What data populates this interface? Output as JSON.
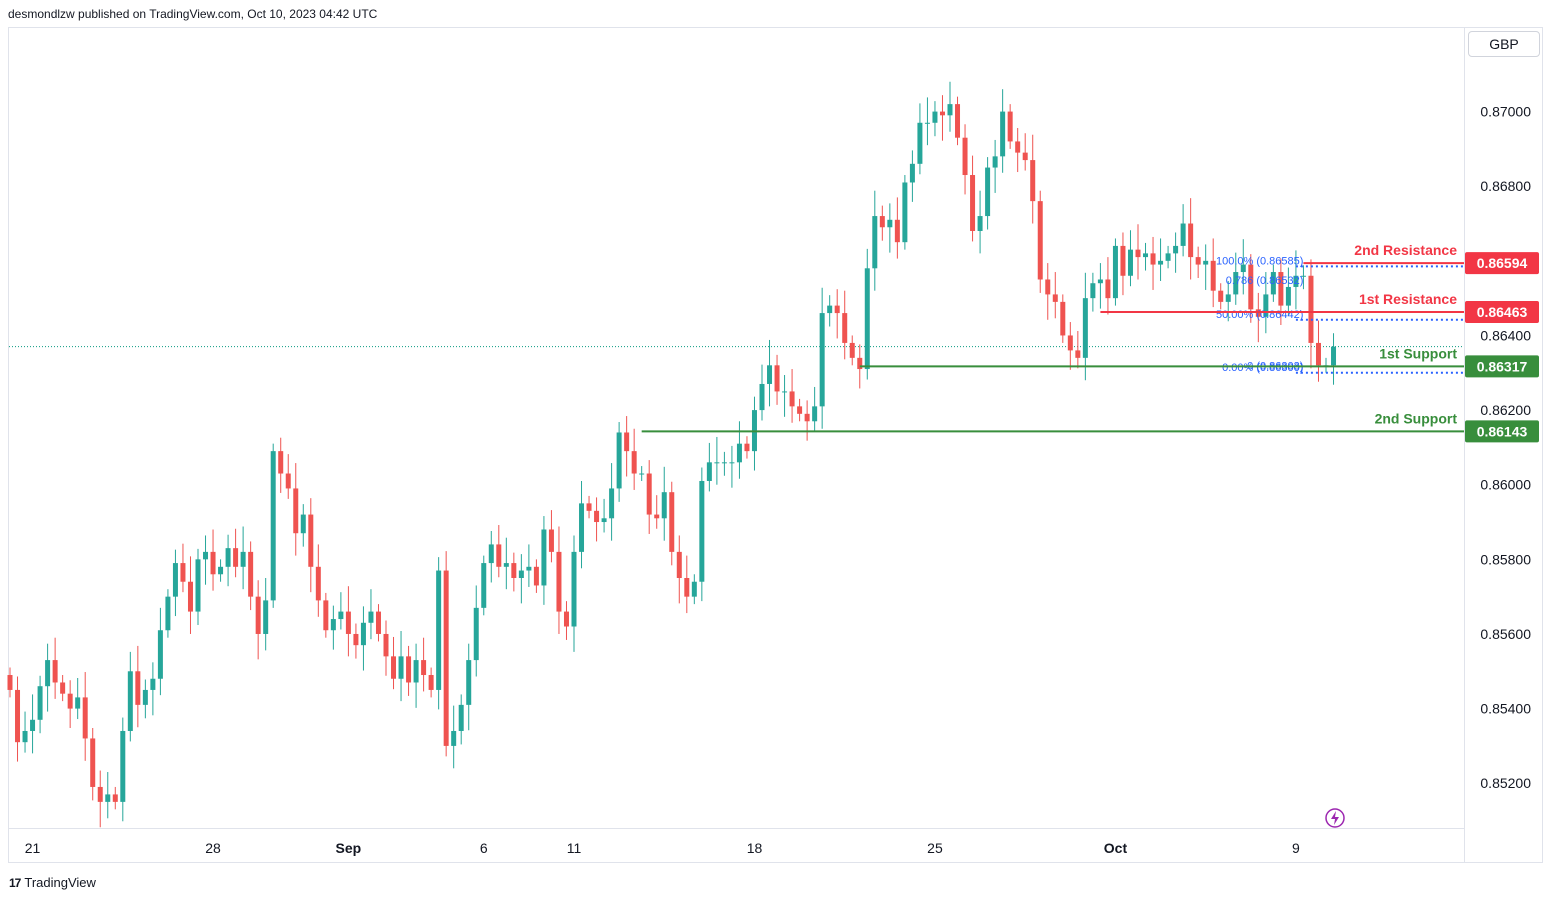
{
  "header": {
    "text": "desmondlzw published on TradingView.com, Oct 10, 2023 04:42 UTC"
  },
  "currency_button": "GBP",
  "footer": {
    "logo": "17",
    "brand": "TradingView"
  },
  "colors": {
    "up": "#26a69a",
    "down": "#ef5350",
    "resistance": "#f23645",
    "support": "#388e3c",
    "fib": "#2962ff",
    "price_line": "#089981"
  },
  "chart_data": {
    "type": "candlestick",
    "title": "",
    "ylim": [
      0.8508,
      0.87224
    ],
    "x_ticks": [
      {
        "label": "21",
        "index": 3,
        "bold": false
      },
      {
        "label": "28",
        "index": 27,
        "bold": false
      },
      {
        "label": "Sep",
        "index": 45,
        "bold": true
      },
      {
        "label": "6",
        "index": 63,
        "bold": false
      },
      {
        "label": "11",
        "index": 75,
        "bold": false
      },
      {
        "label": "18",
        "index": 99,
        "bold": false
      },
      {
        "label": "25",
        "index": 123,
        "bold": false
      },
      {
        "label": "Oct",
        "index": 147,
        "bold": true
      },
      {
        "label": "9",
        "index": 171,
        "bold": false
      }
    ],
    "y_ticks": [
      0.852,
      0.854,
      0.856,
      0.858,
      0.86,
      0.862,
      0.864,
      0.866,
      0.868,
      0.87
    ],
    "y_tick_labels": [
      "0.85200",
      "0.85400",
      "0.85600",
      "0.85800",
      "0.86000",
      "0.86200",
      "0.86400",
      "0.86600",
      "0.86800",
      "0.87000"
    ],
    "closes": [
      0.8545,
      0.8531,
      0.8534,
      0.8537,
      0.8546,
      0.8553,
      0.8547,
      0.8544,
      0.854,
      0.8543,
      0.8532,
      0.8519,
      0.8515,
      0.8517,
      0.8515,
      0.8534,
      0.855,
      0.8541,
      0.8545,
      0.8548,
      0.8561,
      0.857,
      0.8579,
      0.8574,
      0.8566,
      0.858,
      0.8582,
      0.8576,
      0.8578,
      0.8583,
      0.8578,
      0.8582,
      0.857,
      0.856,
      0.8569,
      0.8609,
      0.8603,
      0.8599,
      0.8587,
      0.8592,
      0.8578,
      0.8569,
      0.8561,
      0.8564,
      0.8566,
      0.856,
      0.8557,
      0.8563,
      0.8566,
      0.856,
      0.8554,
      0.8548,
      0.8554,
      0.8547,
      0.8553,
      0.8549,
      0.8545,
      0.8577,
      0.853,
      0.8534,
      0.8541,
      0.8553,
      0.8567,
      0.8579,
      0.8584,
      0.8578,
      0.8579,
      0.8575,
      0.8577,
      0.8578,
      0.8573,
      0.8588,
      0.8582,
      0.8566,
      0.8562,
      0.8582,
      0.8595,
      0.8593,
      0.859,
      0.8591,
      0.8599,
      0.8614,
      0.8609,
      0.8603,
      0.8603,
      0.8592,
      0.8591,
      0.8598,
      0.8582,
      0.8575,
      0.857,
      0.8574,
      0.8601,
      0.8606,
      0.8606,
      0.8606,
      0.8606,
      0.8611,
      0.8609,
      0.862,
      0.8627,
      0.8632,
      0.8625,
      0.8625,
      0.8621,
      0.8619,
      0.8617,
      0.8621,
      0.8646,
      0.8648,
      0.8646,
      0.8638,
      0.8634,
      0.8631,
      0.8658,
      0.8672,
      0.8669,
      0.8671,
      0.8665,
      0.8681,
      0.8686,
      0.8697,
      0.8697,
      0.87,
      0.8699,
      0.8702,
      0.8693,
      0.8683,
      0.8668,
      0.8672,
      0.8685,
      0.8688,
      0.87,
      0.8692,
      0.8689,
      0.8687,
      0.8676,
      0.8655,
      0.8651,
      0.8649,
      0.864,
      0.8636,
      0.8634,
      0.865,
      0.8654,
      0.8655,
      0.865,
      0.8664,
      0.8656,
      0.8663,
      0.8661,
      0.8662,
      0.8659,
      0.866,
      0.8662,
      0.8664,
      0.867,
      0.8661,
      0.8659,
      0.866,
      0.8652,
      0.8649,
      0.8651,
      0.8657,
      0.8659,
      0.8647,
      0.8645,
      0.8651,
      0.8657,
      0.8648,
      0.8653,
      0.8656,
      0.8656,
      0.8638,
      0.8632,
      0.8632,
      0.8637
    ],
    "resistance_levels": [
      {
        "name": "2nd Resistance",
        "value": 0.86594,
        "label": "0.86594",
        "start_index": 172
      },
      {
        "name": "1st Resistance",
        "value": 0.86463,
        "label": "0.86463",
        "start_index": 145
      }
    ],
    "support_levels": [
      {
        "name": "1st Support",
        "value": 0.86317,
        "label": "0.86317",
        "start_index": 113
      },
      {
        "name": "2nd Support",
        "value": 0.86143,
        "label": "0.86143",
        "start_index": 84
      }
    ],
    "fibonacci": [
      {
        "label": "100.0% (0.86585)",
        "value": 0.86585
      },
      {
        "label": "0.786 (0.86532)",
        "value": 0.86532
      },
      {
        "label": "50.00% (0.86442)",
        "value": 0.86442
      },
      {
        "label": "0 (0.86303)",
        "value": 0.86303
      },
      {
        "label": "0.00% (0.86300)",
        "value": 0.863
      }
    ],
    "current_price": 0.8637
  }
}
